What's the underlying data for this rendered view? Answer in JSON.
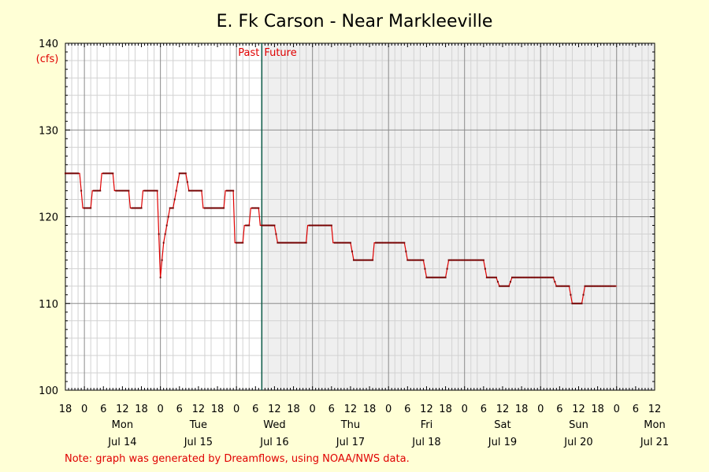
{
  "chart_data": {
    "type": "line",
    "title": "E. Fk Carson - Near Markleeville",
    "ylabel": "(cfs)",
    "ylim": [
      100,
      140
    ],
    "y_ticks": [
      "100",
      "110",
      "120",
      "130",
      "140"
    ],
    "x_range_hours": [
      -6,
      180
    ],
    "x_axis_start": "2025-07-13 18:00",
    "x_hour_ticks": [
      {
        "t": -6,
        "label": "18"
      },
      {
        "t": 0,
        "label": "0"
      },
      {
        "t": 6,
        "label": "6"
      },
      {
        "t": 12,
        "label": "12"
      },
      {
        "t": 18,
        "label": "18"
      },
      {
        "t": 24,
        "label": "0"
      },
      {
        "t": 30,
        "label": "6"
      },
      {
        "t": 36,
        "label": "12"
      },
      {
        "t": 42,
        "label": "18"
      },
      {
        "t": 48,
        "label": "0"
      },
      {
        "t": 54,
        "label": "6"
      },
      {
        "t": 60,
        "label": "12"
      },
      {
        "t": 66,
        "label": "18"
      },
      {
        "t": 72,
        "label": "0"
      },
      {
        "t": 78,
        "label": "6"
      },
      {
        "t": 84,
        "label": "12"
      },
      {
        "t": 90,
        "label": "18"
      },
      {
        "t": 96,
        "label": "0"
      },
      {
        "t": 102,
        "label": "6"
      },
      {
        "t": 108,
        "label": "12"
      },
      {
        "t": 114,
        "label": "18"
      },
      {
        "t": 120,
        "label": "0"
      },
      {
        "t": 126,
        "label": "6"
      },
      {
        "t": 132,
        "label": "12"
      },
      {
        "t": 138,
        "label": "18"
      },
      {
        "t": 144,
        "label": "0"
      },
      {
        "t": 150,
        "label": "6"
      },
      {
        "t": 156,
        "label": "12"
      },
      {
        "t": 162,
        "label": "18"
      },
      {
        "t": 168,
        "label": "0"
      },
      {
        "t": 174,
        "label": "6"
      },
      {
        "t": 180,
        "label": "12"
      }
    ],
    "day_labels": [
      {
        "t": 12,
        "day": "Mon",
        "date": "Jul 14"
      },
      {
        "t": 36,
        "day": "Tue",
        "date": "Jul 15"
      },
      {
        "t": 60,
        "day": "Wed",
        "date": "Jul 16"
      },
      {
        "t": 84,
        "day": "Thu",
        "date": "Jul 17"
      },
      {
        "t": 108,
        "day": "Fri",
        "date": "Jul 18"
      },
      {
        "t": 132,
        "day": "Sat",
        "date": "Jul 19"
      },
      {
        "t": 156,
        "day": "Sun",
        "date": "Jul 20"
      },
      {
        "t": 180,
        "day": "Mon",
        "date": "Jul 21"
      }
    ],
    "now_hour": 56,
    "past_label": "Past",
    "future_label": "Future",
    "series": [
      {
        "color": "#e00000",
        "points": [
          [
            -6,
            125
          ],
          [
            -1.5,
            125
          ],
          [
            -0.5,
            121
          ],
          [
            2,
            121
          ],
          [
            2.5,
            123
          ],
          [
            5,
            123
          ],
          [
            5.5,
            125
          ],
          [
            9,
            125
          ],
          [
            9.5,
            123
          ],
          [
            14,
            123
          ],
          [
            14.5,
            121
          ],
          [
            18,
            121
          ],
          [
            18.5,
            123
          ],
          [
            23,
            123
          ],
          [
            24,
            113
          ],
          [
            25,
            117
          ],
          [
            26,
            119
          ],
          [
            27,
            121
          ],
          [
            28,
            121
          ],
          [
            29,
            123
          ],
          [
            30,
            125
          ],
          [
            32,
            125
          ],
          [
            33,
            123
          ],
          [
            37,
            123
          ],
          [
            37.5,
            121
          ],
          [
            44,
            121
          ],
          [
            44.5,
            123
          ],
          [
            47,
            123
          ],
          [
            47.5,
            117
          ],
          [
            50,
            117
          ],
          [
            50.5,
            119
          ],
          [
            52,
            119
          ],
          [
            52.5,
            121
          ],
          [
            55,
            121
          ],
          [
            55.5,
            119
          ],
          [
            60,
            119
          ],
          [
            61,
            117
          ],
          [
            70,
            117
          ],
          [
            70.5,
            119
          ],
          [
            78,
            119
          ],
          [
            78.5,
            117
          ],
          [
            84,
            117
          ],
          [
            85,
            115
          ],
          [
            91,
            115
          ],
          [
            91.5,
            117
          ],
          [
            101,
            117
          ],
          [
            102,
            115
          ],
          [
            107,
            115
          ],
          [
            108,
            113
          ],
          [
            114,
            113
          ],
          [
            115,
            115
          ],
          [
            126,
            115
          ],
          [
            127,
            113
          ],
          [
            130,
            113
          ],
          [
            131,
            112
          ],
          [
            134,
            112
          ],
          [
            135,
            113
          ],
          [
            148,
            113
          ],
          [
            149,
            112
          ],
          [
            153,
            112
          ],
          [
            154,
            110
          ],
          [
            157,
            110
          ],
          [
            158,
            112
          ],
          [
            168,
            112
          ]
        ]
      }
    ],
    "grid": true,
    "note": "Note: graph was generated by Dreamflows, using NOAA/NWS data."
  }
}
